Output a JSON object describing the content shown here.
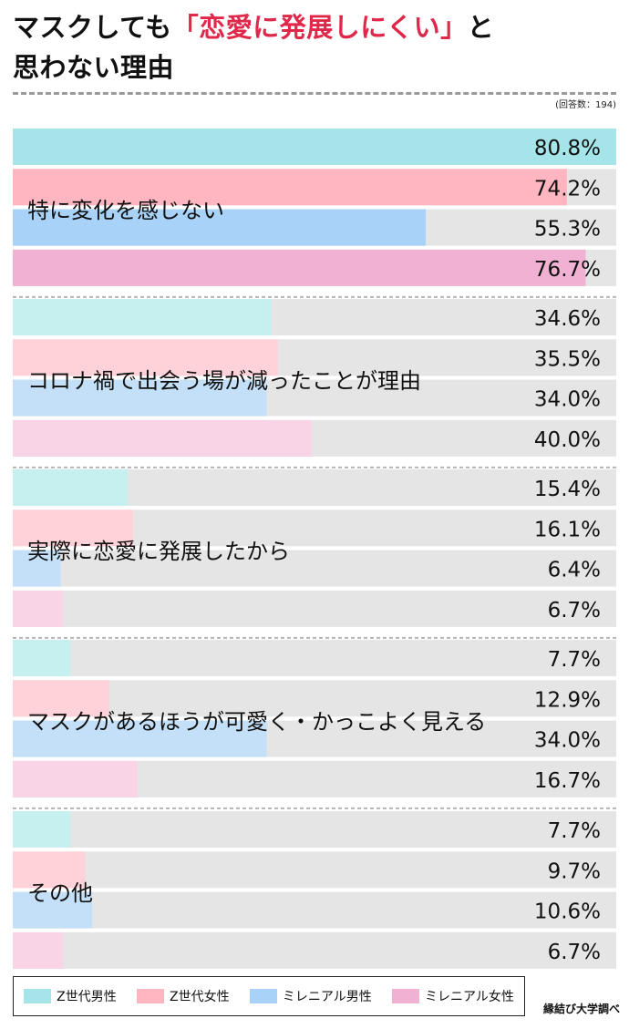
{
  "title": {
    "line1_pre": "マスクしても",
    "line1_accent": "「恋愛に発展しにくい」",
    "line1_post": "と",
    "line2": "思わない理由"
  },
  "note": "(回答数：194)",
  "credit": "縁結び大学調べ",
  "colors": {
    "track": "#e5e5e5",
    "separator": "#b5b5b5",
    "highlight": [
      "#a5e4e8",
      "#ffb6c1",
      "#a8d2f8",
      "#f0b1d2"
    ],
    "light": [
      "#c6f0ef",
      "#ffd1d9",
      "#c3e0f8",
      "#f8d4e6"
    ]
  },
  "chart_data": {
    "type": "bar",
    "orientation": "horizontal",
    "unit": "%",
    "xlim": [
      0,
      80.8
    ],
    "categories": [
      "特に変化を感じない",
      "コロナ禍で出会う場が減ったことが理由",
      "実際に恋愛に発展したから",
      "マスクがあるほうが可愛く・かっこよく見える",
      "その他"
    ],
    "series": [
      {
        "name": "Z世代男性",
        "values": [
          80.8,
          34.6,
          15.4,
          7.7,
          7.7
        ],
        "labels": [
          "80.8%",
          "34.6%",
          "15.4%",
          "7.7%",
          "7.7%"
        ]
      },
      {
        "name": "Z世代女性",
        "values": [
          74.2,
          35.5,
          16.1,
          12.9,
          9.7
        ],
        "labels": [
          "74.2%",
          "35.5%",
          "16.1%",
          "12.9%",
          "9.7%"
        ]
      },
      {
        "name": "ミレニアル男性",
        "values": [
          55.3,
          34.0,
          6.4,
          34.0,
          10.6
        ],
        "labels": [
          "55.3%",
          "34.0%",
          "6.4%",
          "34.0%",
          "10.6%"
        ]
      },
      {
        "name": "ミレニアル女性",
        "values": [
          76.7,
          40.0,
          6.7,
          16.7,
          6.7
        ],
        "labels": [
          "76.7%",
          "40.0%",
          "6.7%",
          "16.7%",
          "6.7%"
        ]
      }
    ]
  }
}
